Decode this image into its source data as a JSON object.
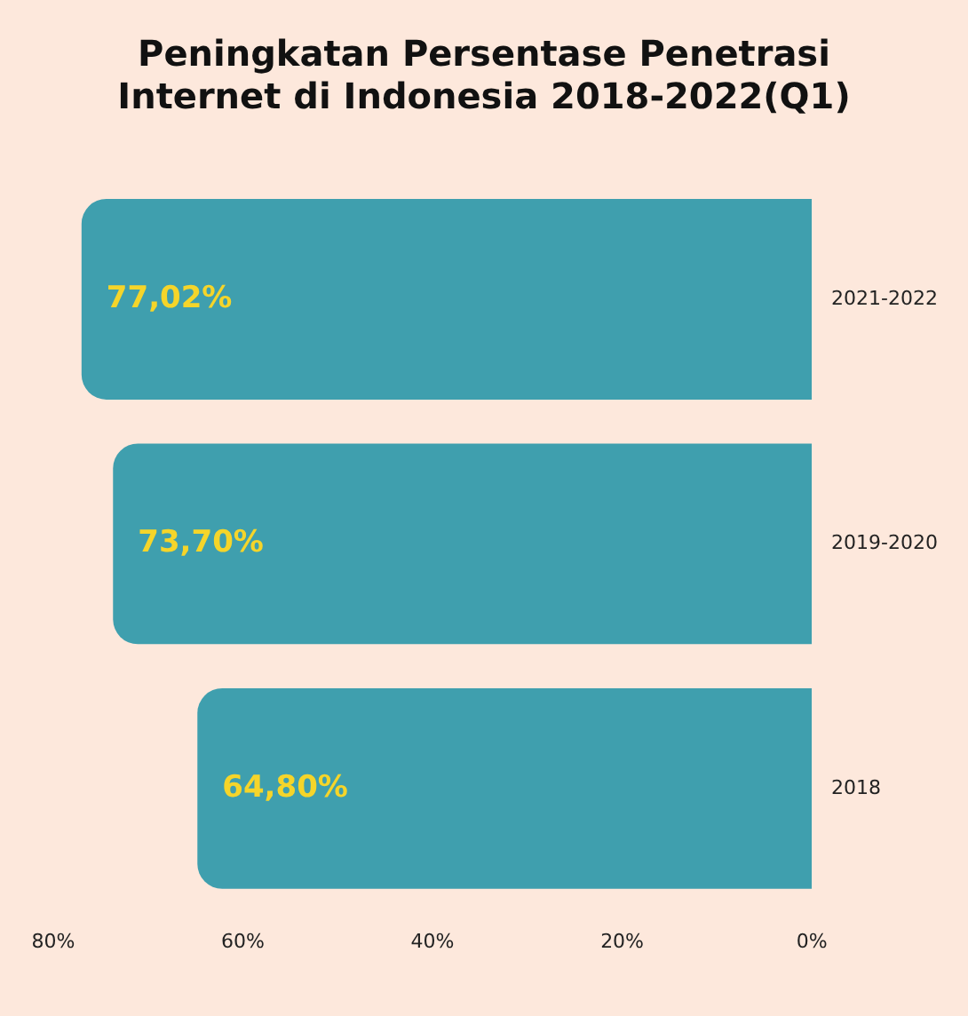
{
  "chart_data": {
    "type": "bar",
    "orientation": "horizontal",
    "title": "Peningkatan Persentase Penetrasi Internet di Indonesia 2018-2022(Q1)",
    "categories": [
      "2021-2022",
      "2019-2020",
      "2018"
    ],
    "values": [
      77.02,
      73.7,
      64.8
    ],
    "color": "#3f9fae",
    "value_labels": [
      "77,02%",
      "73,70%",
      "64,80%"
    ],
    "xlim": [
      80,
      0
    ],
    "xticks": [
      {
        "value": 80,
        "label": "80%"
      },
      {
        "value": 60,
        "label": "60%"
      },
      {
        "value": 40,
        "label": "40%"
      },
      {
        "value": 20,
        "label": "20%"
      },
      {
        "value": 0,
        "label": "0%"
      }
    ],
    "grid": false,
    "legend": false
  }
}
